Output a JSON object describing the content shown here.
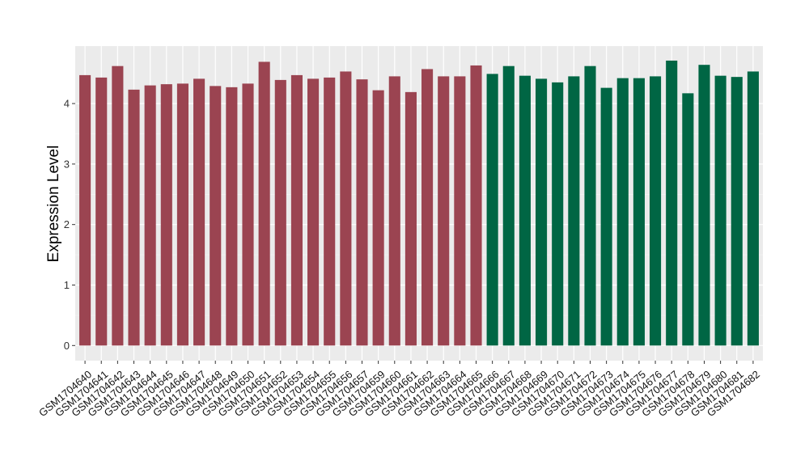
{
  "chart_data": {
    "type": "bar",
    "title": "",
    "xlabel": "",
    "ylabel": "Expression Level",
    "ylim": [
      -0.25,
      4.95
    ],
    "yticks": [
      0,
      1,
      2,
      3,
      4
    ],
    "grid": true,
    "legend": "none",
    "panel_background": "#ebebeb",
    "categories": [
      "GSM1704640",
      "GSM1704641",
      "GSM1704642",
      "GSM1704643",
      "GSM1704644",
      "GSM1704645",
      "GSM1704646",
      "GSM1704647",
      "GSM1704648",
      "GSM1704649",
      "GSM1704650",
      "GSM1704651",
      "GSM1704652",
      "GSM1704653",
      "GSM1704654",
      "GSM1704655",
      "GSM1704656",
      "GSM1704657",
      "GSM1704659",
      "GSM1704660",
      "GSM1704661",
      "GSM1704662",
      "GSM1704663",
      "GSM1704664",
      "GSM1704665",
      "GSM1704666",
      "GSM1704667",
      "GSM1704668",
      "GSM1704669",
      "GSM1704670",
      "GSM1704671",
      "GSM1704672",
      "GSM1704673",
      "GSM1704674",
      "GSM1704675",
      "GSM1704676",
      "GSM1704677",
      "GSM1704678",
      "GSM1704679",
      "GSM1704680",
      "GSM1704681",
      "GSM1704682"
    ],
    "values": [
      4.47,
      4.43,
      4.62,
      4.23,
      4.3,
      4.32,
      4.33,
      4.41,
      4.29,
      4.27,
      4.33,
      4.69,
      4.39,
      4.47,
      4.41,
      4.43,
      4.53,
      4.4,
      4.22,
      4.45,
      4.19,
      4.57,
      4.45,
      4.45,
      4.63,
      4.49,
      4.62,
      4.46,
      4.41,
      4.35,
      4.45,
      4.62,
      4.26,
      4.42,
      4.42,
      4.45,
      4.71,
      4.17,
      4.64,
      4.46,
      4.44,
      4.53
    ],
    "groups": [
      0,
      0,
      0,
      0,
      0,
      0,
      0,
      0,
      0,
      0,
      0,
      0,
      0,
      0,
      0,
      0,
      0,
      0,
      0,
      0,
      0,
      0,
      0,
      0,
      0,
      1,
      1,
      1,
      1,
      1,
      1,
      1,
      1,
      1,
      1,
      1,
      1,
      1,
      1,
      1,
      1,
      1
    ],
    "group_colors": [
      "#9b4451",
      "#006644"
    ]
  }
}
